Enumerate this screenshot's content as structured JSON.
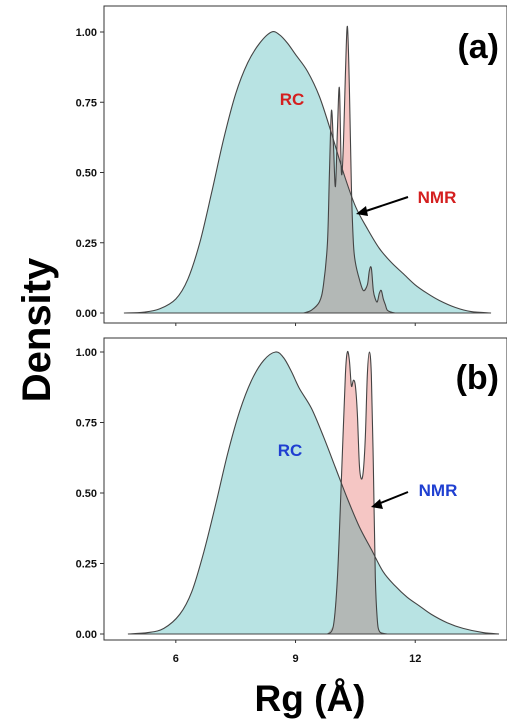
{
  "chart_data": {
    "type": "area",
    "ylabel": "Density",
    "xlabel": "Rg (Å)",
    "xlim": [
      4.2,
      14.3
    ],
    "ylim": [
      0,
      1.03
    ],
    "x_ticks": [
      6,
      9,
      12
    ],
    "y_ticks": [
      0.0,
      0.25,
      0.5,
      0.75,
      1.0
    ],
    "y_tick_labels": [
      "0.00",
      "0.25",
      "0.50",
      "0.75",
      "1.00"
    ],
    "grid": false,
    "legend": "none",
    "colors": {
      "rc": "#b8e3e3",
      "nmr": "#f5c6c4",
      "overlap": "#b3b8b6",
      "stroke": "#444444"
    },
    "panels": [
      {
        "panel_label": "(a)",
        "series": [
          {
            "name": "RC",
            "label_color": "#d41f1f",
            "x": [
              4.7,
              5.2,
              5.6,
              6.0,
              6.3,
              6.6,
              6.9,
              7.2,
              7.5,
              7.8,
              8.1,
              8.4,
              8.6,
              8.8,
              9.0,
              9.3,
              9.6,
              9.9,
              10.2,
              10.5,
              10.8,
              11.1,
              11.4,
              11.7,
              12.0,
              12.3,
              12.6,
              13.0,
              13.4,
              13.9
            ],
            "y": [
              0.0,
              0.003,
              0.015,
              0.05,
              0.12,
              0.25,
              0.43,
              0.62,
              0.78,
              0.89,
              0.96,
              1.0,
              0.99,
              0.96,
              0.92,
              0.86,
              0.77,
              0.64,
              0.5,
              0.38,
              0.3,
              0.23,
              0.18,
              0.14,
              0.1,
              0.07,
              0.045,
              0.02,
              0.005,
              0.0
            ]
          },
          {
            "name": "NMR",
            "label_color": "#d41f1f",
            "x": [
              9.2,
              9.4,
              9.6,
              9.7,
              9.8,
              9.85,
              9.9,
              9.95,
              10.0,
              10.05,
              10.1,
              10.15,
              10.2,
              10.25,
              10.3,
              10.35,
              10.4,
              10.45,
              10.5,
              10.6,
              10.7,
              10.8,
              10.85,
              10.9,
              10.95,
              11.0,
              11.05,
              11.1,
              11.15,
              11.2,
              11.25,
              11.3,
              11.4,
              11.5
            ],
            "y": [
              0.0,
              0.01,
              0.04,
              0.1,
              0.25,
              0.5,
              0.72,
              0.6,
              0.45,
              0.65,
              0.8,
              0.5,
              0.6,
              0.85,
              1.02,
              0.8,
              0.45,
              0.25,
              0.18,
              0.12,
              0.08,
              0.1,
              0.15,
              0.16,
              0.08,
              0.05,
              0.04,
              0.07,
              0.08,
              0.05,
              0.03,
              0.01,
              0.003,
              0.0
            ]
          }
        ]
      },
      {
        "panel_label": "(b)",
        "series": [
          {
            "name": "RC",
            "label_color": "#1f3fd1",
            "x": [
              4.8,
              5.3,
              5.7,
              6.1,
              6.4,
              6.7,
              7.0,
              7.3,
              7.6,
              7.9,
              8.2,
              8.5,
              8.7,
              8.9,
              9.1,
              9.4,
              9.7,
              10.0,
              10.3,
              10.6,
              10.9,
              11.2,
              11.5,
              11.8,
              12.1,
              12.4,
              12.8,
              13.2,
              13.7,
              14.1
            ],
            "y": [
              0.0,
              0.005,
              0.02,
              0.07,
              0.15,
              0.29,
              0.46,
              0.64,
              0.79,
              0.9,
              0.97,
              1.0,
              0.98,
              0.93,
              0.87,
              0.8,
              0.7,
              0.59,
              0.48,
              0.38,
              0.3,
              0.22,
              0.17,
              0.13,
              0.1,
              0.07,
              0.04,
              0.02,
              0.005,
              0.0
            ]
          },
          {
            "name": "NMR",
            "label_color": "#1f3fd1",
            "x": [
              9.8,
              9.95,
              10.05,
              10.15,
              10.25,
              10.3,
              10.35,
              10.4,
              10.45,
              10.5,
              10.55,
              10.6,
              10.65,
              10.7,
              10.75,
              10.8,
              10.85,
              10.9,
              10.95,
              11.0,
              11.05,
              11.1,
              11.2,
              11.3
            ],
            "y": [
              0.0,
              0.03,
              0.2,
              0.55,
              0.92,
              1.0,
              0.97,
              0.88,
              0.9,
              0.88,
              0.78,
              0.6,
              0.55,
              0.58,
              0.7,
              0.92,
              1.0,
              0.92,
              0.6,
              0.2,
              0.05,
              0.01,
              0.002,
              0.0
            ]
          }
        ]
      }
    ]
  }
}
